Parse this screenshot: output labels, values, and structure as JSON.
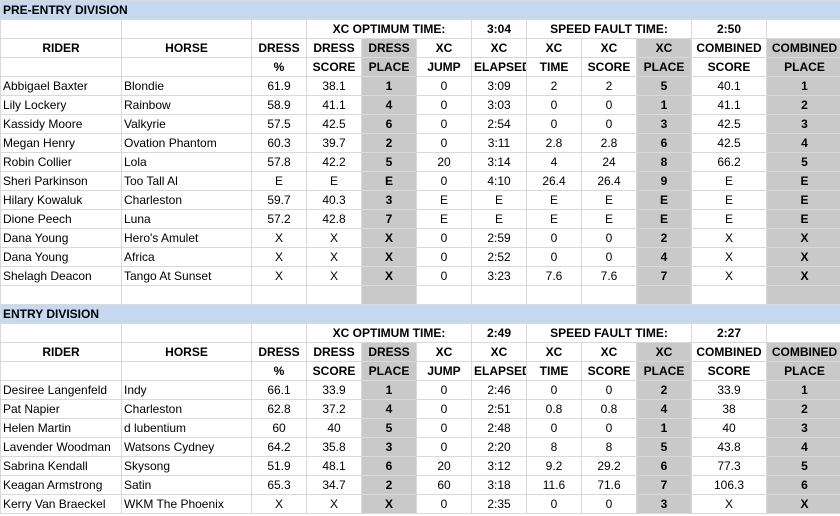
{
  "columns": {
    "rider": "RIDER",
    "horse": "HORSE",
    "dress_pct_1": "DRESS",
    "dress_pct_2": "%",
    "dress_score_1": "DRESS",
    "dress_score_2": "SCORE",
    "dress_place_1": "DRESS",
    "dress_place_2": "PLACE",
    "xc_jump_1": "XC",
    "xc_jump_2": "JUMP",
    "xc_elapsed_1": "XC",
    "xc_elapsed_2": "ELAPSED",
    "xc_time_1": "XC",
    "xc_time_2": "TIME",
    "xc_score_1": "XC",
    "xc_score_2": "SCORE",
    "xc_place_1": "XC",
    "xc_place_2": "PLACE",
    "comb_score_1": "COMBINED",
    "comb_score_2": "SCORE",
    "comb_place_1": "COMBINED",
    "comb_place_2": "PLACE"
  },
  "divisions": [
    {
      "title": "PRE-ENTRY DIVISION",
      "xc_optimum_label": "XC OPTIMUM TIME:",
      "xc_optimum_value": "3:04",
      "speed_fault_label": "SPEED FAULT TIME:",
      "speed_fault_value": "2:50",
      "rows": [
        [
          "Abbigael Baxter",
          "Blondie",
          "61.9",
          "38.1",
          "1",
          "0",
          "3:09",
          "2",
          "2",
          "5",
          "40.1",
          "1"
        ],
        [
          "Lily Lockery",
          "Rainbow",
          "58.9",
          "41.1",
          "4",
          "0",
          "3:03",
          "0",
          "0",
          "1",
          "41.1",
          "2"
        ],
        [
          "Kassidy Moore",
          "Valkyrie",
          "57.5",
          "42.5",
          "6",
          "0",
          "2:54",
          "0",
          "0",
          "3",
          "42.5",
          "3"
        ],
        [
          "Megan Henry",
          "Ovation Phantom",
          "60.3",
          "39.7",
          "2",
          "0",
          "3:11",
          "2.8",
          "2.8",
          "6",
          "42.5",
          "4"
        ],
        [
          "Robin Collier",
          "Lola",
          "57.8",
          "42.2",
          "5",
          "20",
          "3:14",
          "4",
          "24",
          "8",
          "66.2",
          "5"
        ],
        [
          "Sheri Parkinson",
          "Too Tall Al",
          "E",
          "E",
          "E",
          "0",
          "4:10",
          "26.4",
          "26.4",
          "9",
          "E",
          "E"
        ],
        [
          "Hilary Kowaluk",
          "Charleston",
          "59.7",
          "40.3",
          "3",
          "E",
          "E",
          "E",
          "E",
          "E",
          "E",
          "E"
        ],
        [
          "Dione Peech",
          "Luna",
          "57.2",
          "42.8",
          "7",
          "E",
          "E",
          "E",
          "E",
          "E",
          "E",
          "E"
        ],
        [
          "Dana Young",
          "Hero's Amulet",
          "X",
          "X",
          "X",
          "0",
          "2:59",
          "0",
          "0",
          "2",
          "X",
          "X"
        ],
        [
          "Dana Young",
          "Africa",
          "X",
          "X",
          "X",
          "0",
          "2:52",
          "0",
          "0",
          "4",
          "X",
          "X"
        ],
        [
          "Shelagh Deacon",
          "Tango At Sunset",
          "X",
          "X",
          "X",
          "0",
          "3:23",
          "7.6",
          "7.6",
          "7",
          "X",
          "X"
        ]
      ]
    },
    {
      "title": "ENTRY DIVISION",
      "xc_optimum_label": "XC OPTIMUM TIME:",
      "xc_optimum_value": "2:49",
      "speed_fault_label": "SPEED FAULT TIME:",
      "speed_fault_value": "2:27",
      "rows": [
        [
          "Desiree Langenfeld",
          "Indy",
          "66.1",
          "33.9",
          "1",
          "0",
          "2:46",
          "0",
          "0",
          "2",
          "33.9",
          "1"
        ],
        [
          "Pat Napier",
          "Charleston",
          "62.8",
          "37.2",
          "4",
          "0",
          "2:51",
          "0.8",
          "0.8",
          "4",
          "38",
          "2"
        ],
        [
          "Helen Martin",
          "d lubentium",
          "60",
          "40",
          "5",
          "0",
          "2:48",
          "0",
          "0",
          "1",
          "40",
          "3"
        ],
        [
          "Lavender Woodman",
          "Watsons Cydney",
          "64.2",
          "35.8",
          "3",
          "0",
          "2:20",
          "8",
          "8",
          "5",
          "43.8",
          "4"
        ],
        [
          "Sabrina Kendall",
          "Skysong",
          "51.9",
          "48.1",
          "6",
          "20",
          "3:12",
          "9.2",
          "29.2",
          "6",
          "77.3",
          "5"
        ],
        [
          "Keagan Armstrong",
          "Satin",
          "65.3",
          "34.7",
          "2",
          "60",
          "3:18",
          "11.6",
          "71.6",
          "7",
          "106.3",
          "6"
        ],
        [
          "Kerry Van Braeckel",
          "WKM The Phoenix",
          "X",
          "X",
          "X",
          "0",
          "2:35",
          "0",
          "0",
          "3",
          "X",
          "X"
        ]
      ]
    }
  ]
}
